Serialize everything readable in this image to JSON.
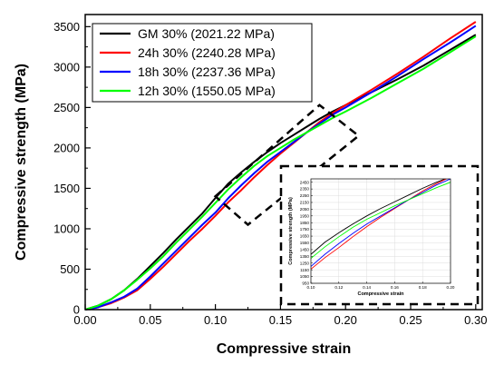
{
  "chart_data": {
    "type": "line",
    "xlabel": "Compressive strain",
    "ylabel": "Compressive strength (MPa)",
    "xlim": [
      0.0,
      0.305
    ],
    "ylim": [
      0,
      3650
    ],
    "xticks": [
      "0.00",
      "0.05",
      "0.10",
      "0.15",
      "0.20",
      "0.25",
      "0.30"
    ],
    "yticks": [
      "0",
      "500",
      "1000",
      "1500",
      "2000",
      "2500",
      "3000",
      "3500"
    ],
    "legend_position": "top-left",
    "series": [
      {
        "name": "GM 30% (2021.22 MPa)",
        "color": "#000000",
        "x": [
          0.0,
          0.01,
          0.02,
          0.03,
          0.04,
          0.05,
          0.06,
          0.07,
          0.08,
          0.09,
          0.1,
          0.11,
          0.12,
          0.13,
          0.14,
          0.15,
          0.16,
          0.17,
          0.18,
          0.19,
          0.2,
          0.22,
          0.24,
          0.26,
          0.28,
          0.3
        ],
        "y": [
          0,
          50,
          130,
          240,
          380,
          540,
          700,
          870,
          1030,
          1190,
          1380,
          1560,
          1700,
          1830,
          1950,
          2060,
          2160,
          2260,
          2360,
          2450,
          2530,
          2690,
          2850,
          3020,
          3210,
          3400
        ]
      },
      {
        "name": "24h 30% (2240.28 MPa)",
        "color": "#ff0000",
        "x": [
          0.0,
          0.01,
          0.02,
          0.03,
          0.04,
          0.05,
          0.06,
          0.07,
          0.08,
          0.09,
          0.1,
          0.11,
          0.12,
          0.13,
          0.14,
          0.15,
          0.16,
          0.17,
          0.18,
          0.19,
          0.2,
          0.22,
          0.24,
          0.26,
          0.28,
          0.3
        ],
        "y": [
          0,
          30,
          80,
          150,
          240,
          380,
          530,
          690,
          850,
          1000,
          1160,
          1330,
          1480,
          1640,
          1790,
          1930,
          2060,
          2190,
          2320,
          2430,
          2530,
          2720,
          2920,
          3130,
          3350,
          3560
        ]
      },
      {
        "name": "18h 30% (2237.36 MPa)",
        "color": "#0000ff",
        "x": [
          0.0,
          0.01,
          0.02,
          0.03,
          0.04,
          0.05,
          0.06,
          0.07,
          0.08,
          0.09,
          0.1,
          0.11,
          0.12,
          0.13,
          0.14,
          0.15,
          0.16,
          0.17,
          0.18,
          0.19,
          0.2,
          0.22,
          0.24,
          0.26,
          0.28,
          0.3
        ],
        "y": [
          0,
          30,
          90,
          160,
          260,
          410,
          570,
          730,
          890,
          1050,
          1200,
          1380,
          1540,
          1690,
          1830,
          1950,
          2070,
          2190,
          2300,
          2410,
          2500,
          2690,
          2890,
          3100,
          3300,
          3510
        ]
      },
      {
        "name": "12h 30% (1550.05 MPa)",
        "color": "#00ff00",
        "x": [
          0.0,
          0.01,
          0.02,
          0.03,
          0.04,
          0.05,
          0.06,
          0.07,
          0.08,
          0.09,
          0.1,
          0.11,
          0.12,
          0.13,
          0.14,
          0.15,
          0.16,
          0.17,
          0.18,
          0.19,
          0.2,
          0.22,
          0.24,
          0.26,
          0.28,
          0.3
        ],
        "y": [
          0,
          50,
          130,
          240,
          370,
          510,
          660,
          830,
          990,
          1150,
          1320,
          1490,
          1640,
          1780,
          1900,
          2000,
          2100,
          2190,
          2280,
          2370,
          2450,
          2620,
          2800,
          2980,
          3180,
          3380
        ]
      }
    ],
    "highlight_box": {
      "x_range": [
        0.1,
        0.2
      ],
      "y_range": [
        950,
        2500
      ]
    },
    "inset": {
      "xlabel": "Compressive strain",
      "ylabel": "Compressive strength (MPa)",
      "xlim": [
        0.1,
        0.2
      ],
      "ylim": [
        950,
        2500
      ],
      "xticks": [
        "0.10",
        "0.12",
        "0.14",
        "0.16",
        "0.18",
        "0.20"
      ],
      "yticks": [
        "950",
        "1050",
        "1150",
        "1250",
        "1350",
        "1450",
        "1550",
        "1650",
        "1750",
        "1850",
        "1950",
        "2050",
        "2150",
        "2250",
        "2350",
        "2450"
      ]
    }
  }
}
